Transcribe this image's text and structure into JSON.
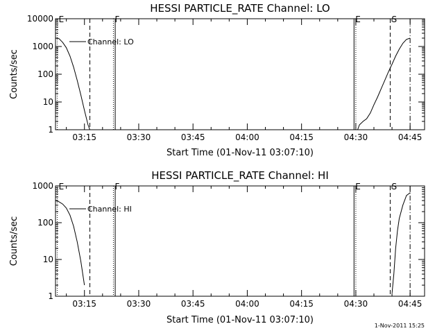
{
  "timestamp": "1-Nov-2011 15:25",
  "colors": {
    "ink": "#000000",
    "background": "#ffffff"
  },
  "chart_data": [
    {
      "type": "line",
      "title": "HESSI PARTICLE_RATE Channel: LO",
      "xlabel": "Start Time (01-Nov-11 03:07:10)",
      "ylabel": "Counts/sec",
      "xlim": [
        "03:07",
        "04:49"
      ],
      "ylim": [
        1,
        10000
      ],
      "yscale": "log",
      "xticks": [
        "03:15",
        "03:30",
        "03:45",
        "04:00",
        "04:15",
        "04:30",
        "04:45"
      ],
      "yticks": [
        "1",
        "10",
        "100",
        "1000",
        "10000"
      ],
      "legend": {
        "label": "Channel: LO",
        "placement": "top-left"
      },
      "markers": [
        {
          "label": "E",
          "time": "03:07.5",
          "style": "dotted"
        },
        {
          "label": "",
          "time": "03:16.5",
          "style": "dashed"
        },
        {
          "label": "F",
          "time": "03:23",
          "style": "dotted"
        },
        {
          "label": "",
          "time": "03:23.5",
          "style": "solid"
        },
        {
          "label": "E",
          "time": "04:29.5",
          "style": "solid"
        },
        {
          "label": "",
          "time": "04:30",
          "style": "dotted"
        },
        {
          "label": "S",
          "time": "04:39.5",
          "style": "dashed"
        },
        {
          "label": "",
          "time": "04:45",
          "style": "dashdot"
        }
      ],
      "series": [
        {
          "name": "Channel: LO",
          "points": [
            [
              "03:07",
              2000
            ],
            [
              "03:08",
              1900
            ],
            [
              "03:09",
              1400
            ],
            [
              "03:10",
              900
            ],
            [
              "03:11",
              450
            ],
            [
              "03:12",
              180
            ],
            [
              "03:13",
              60
            ],
            [
              "03:14",
              18
            ],
            [
              "03:15",
              5
            ],
            [
              "03:16",
              1.5
            ],
            [
              "03:16.5",
              1
            ],
            [
              "04:30.5",
              1
            ],
            [
              "04:31",
              1.5
            ],
            [
              "04:32",
              2
            ],
            [
              "04:33",
              2.5
            ],
            [
              "04:34",
              4
            ],
            [
              "04:35",
              8
            ],
            [
              "04:36",
              15
            ],
            [
              "04:37",
              30
            ],
            [
              "04:38",
              60
            ],
            [
              "04:39",
              120
            ],
            [
              "04:40",
              230
            ],
            [
              "04:41",
              450
            ],
            [
              "04:42",
              800
            ],
            [
              "04:43",
              1300
            ],
            [
              "04:44",
              1800
            ],
            [
              "04:45",
              2000
            ]
          ]
        }
      ]
    },
    {
      "type": "line",
      "title": "HESSI PARTICLE_RATE Channel: HI",
      "xlabel": "Start Time (01-Nov-11 03:07:10)",
      "ylabel": "Counts/sec",
      "xlim": [
        "03:07",
        "04:49"
      ],
      "ylim": [
        1,
        1000
      ],
      "yscale": "log",
      "xticks": [
        "03:15",
        "03:30",
        "03:45",
        "04:00",
        "04:15",
        "04:30",
        "04:45"
      ],
      "yticks": [
        "1",
        "10",
        "100",
        "1000"
      ],
      "legend": {
        "label": "Channel: HI",
        "placement": "top-left"
      },
      "markers": [
        {
          "label": "E",
          "time": "03:07.5",
          "style": "dotted"
        },
        {
          "label": "",
          "time": "03:16.5",
          "style": "dashed"
        },
        {
          "label": "F",
          "time": "03:23",
          "style": "dotted"
        },
        {
          "label": "",
          "time": "03:23.5",
          "style": "solid"
        },
        {
          "label": "E",
          "time": "04:29.5",
          "style": "solid"
        },
        {
          "label": "",
          "time": "04:30",
          "style": "dotted"
        },
        {
          "label": "S",
          "time": "04:39.5",
          "style": "dashed"
        },
        {
          "label": "",
          "time": "04:45",
          "style": "dashdot"
        }
      ],
      "series": [
        {
          "name": "Channel: HI",
          "points": [
            [
              "03:07",
              400
            ],
            [
              "03:08",
              370
            ],
            [
              "03:09",
              320
            ],
            [
              "03:10",
              250
            ],
            [
              "03:11",
              160
            ],
            [
              "03:12",
              80
            ],
            [
              "03:13",
              30
            ],
            [
              "03:14",
              9
            ],
            [
              "03:15",
              2
            ]
          ]
        },
        {
          "name": "Channel: HI",
          "points": [
            [
              "04:40",
              1.2
            ],
            [
              "04:40.5",
              4
            ],
            [
              "04:41",
              20
            ],
            [
              "04:41.5",
              60
            ],
            [
              "04:42",
              130
            ],
            [
              "04:43",
              300
            ],
            [
              "04:44",
              550
            ],
            [
              "04:45",
              650
            ]
          ]
        }
      ]
    }
  ]
}
